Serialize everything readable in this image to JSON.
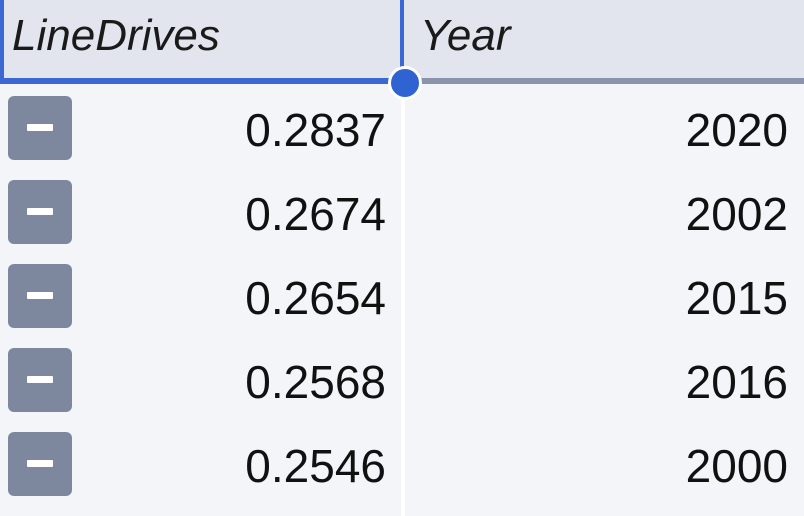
{
  "columns": [
    {
      "label": "LineDrives"
    },
    {
      "label": "Year"
    }
  ],
  "rows": [
    {
      "line_drives": "0.2837",
      "year": "2020"
    },
    {
      "line_drives": "0.2674",
      "year": "2002"
    },
    {
      "line_drives": "0.2654",
      "year": "2015"
    },
    {
      "line_drives": "0.2568",
      "year": "2016"
    },
    {
      "line_drives": "0.2546",
      "year": "2000"
    }
  ],
  "colors": {
    "selected_border": "#3b68d3",
    "header_bg": "#e2e5ee",
    "row_bg": "#f4f5f8",
    "button_bg": "#7d889f"
  },
  "icons": {
    "row_toggle": "minus-icon"
  }
}
